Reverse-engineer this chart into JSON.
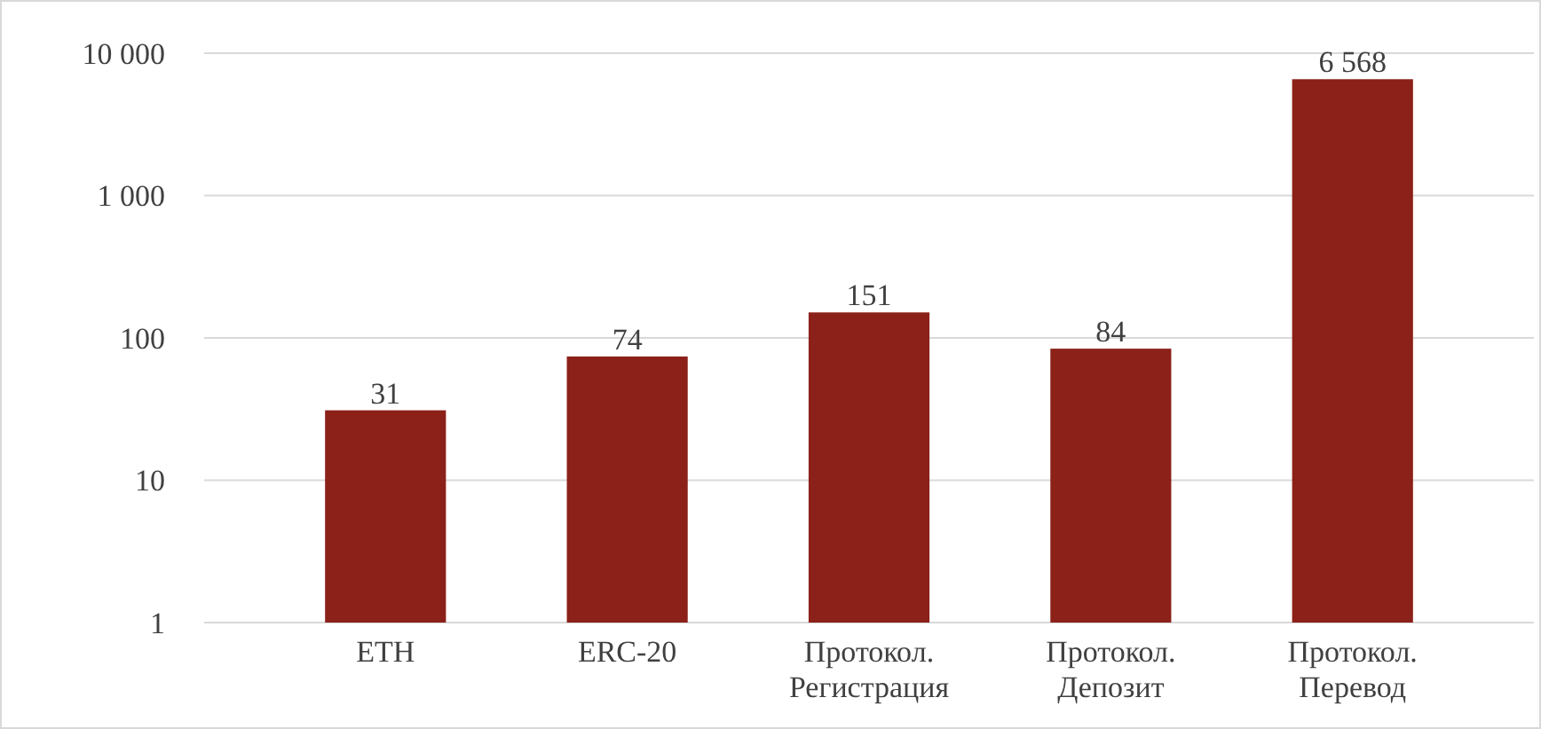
{
  "chart_data": {
    "type": "bar",
    "categories": [
      "ETH",
      "ERC-20",
      "Протокол. Регистрация",
      "Протокол. Депозит",
      "Протокол. Перевод"
    ],
    "values": [
      31,
      74,
      151,
      84,
      6568
    ],
    "color": "#8b2119",
    "log": true,
    "ylim": [
      1,
      10000
    ],
    "yticks": [
      1,
      10,
      100,
      {
        "value": 1000,
        "label": "1 000"
      },
      {
        "value": 10000,
        "label": "10 000"
      }
    ],
    "grid": "y",
    "data_labels": true,
    "value_labels": [
      "31",
      "74",
      "151",
      "84",
      "6 568"
    ]
  }
}
